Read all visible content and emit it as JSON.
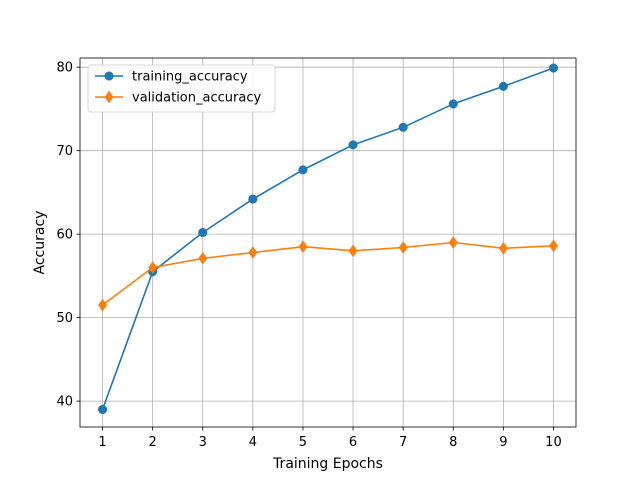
{
  "chart_data": {
    "type": "line",
    "title": "",
    "xlabel": "Training Epochs",
    "ylabel": "Accuracy",
    "x": [
      1,
      2,
      3,
      4,
      5,
      6,
      7,
      8,
      9,
      10
    ],
    "xlim": [
      0.55,
      10.45
    ],
    "ylim": [
      36.9,
      81.1
    ],
    "xticks": [
      1,
      2,
      3,
      4,
      5,
      6,
      7,
      8,
      9,
      10
    ],
    "yticks": [
      40,
      50,
      60,
      70,
      80
    ],
    "grid": true,
    "legend_position": "top-left",
    "series": [
      {
        "name": "training_accuracy",
        "color": "#1f77b4",
        "marker": "circle",
        "values": [
          39.0,
          55.5,
          60.2,
          64.2,
          67.7,
          70.7,
          72.8,
          75.6,
          77.7,
          79.9
        ]
      },
      {
        "name": "validation_accuracy",
        "color": "#ff7f0e",
        "marker": "diamond",
        "values": [
          51.5,
          56.0,
          57.1,
          57.8,
          58.5,
          58.0,
          58.4,
          59.0,
          58.3,
          58.6
        ]
      }
    ]
  }
}
